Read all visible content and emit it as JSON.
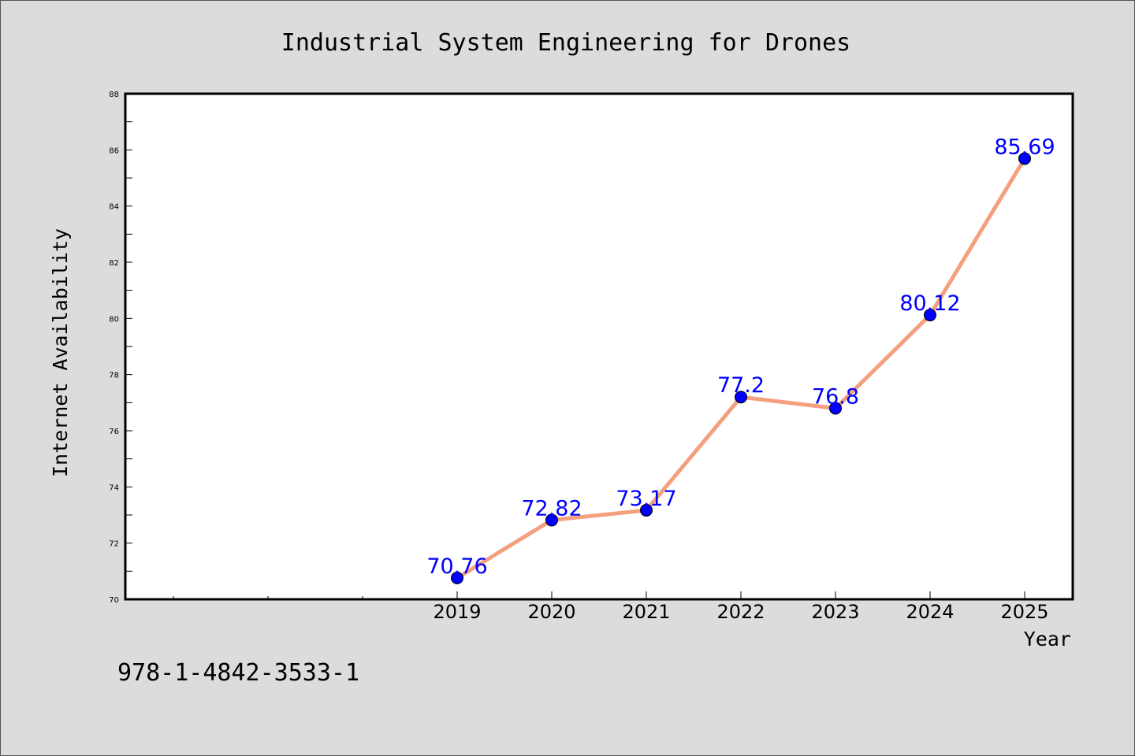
{
  "chart_data": {
    "type": "line",
    "title": "Industrial System Engineering for Drones",
    "xlabel": "Year",
    "ylabel": "Internet Availability",
    "x": [
      "2019",
      "2020",
      "2021",
      "2022",
      "2023",
      "2024",
      "2025"
    ],
    "values": [
      70.76,
      72.82,
      73.17,
      77.2,
      76.8,
      80.12,
      85.69
    ],
    "data_labels": [
      "70.76",
      "72.82",
      "73.17",
      "77.2",
      "76.8",
      "80.12",
      "85.69"
    ],
    "ylim": [
      70,
      88
    ],
    "yticks": [
      70,
      72,
      74,
      76,
      78,
      80,
      82,
      84,
      86,
      88
    ],
    "grid": false,
    "line_color": "#f4a07e",
    "marker_color": "#0000ff",
    "label_color": "#0000ff"
  },
  "footnote": "978-1-4842-3533-1",
  "colors": {
    "background": "#dcdcdc",
    "plot_background": "#ffffff"
  }
}
